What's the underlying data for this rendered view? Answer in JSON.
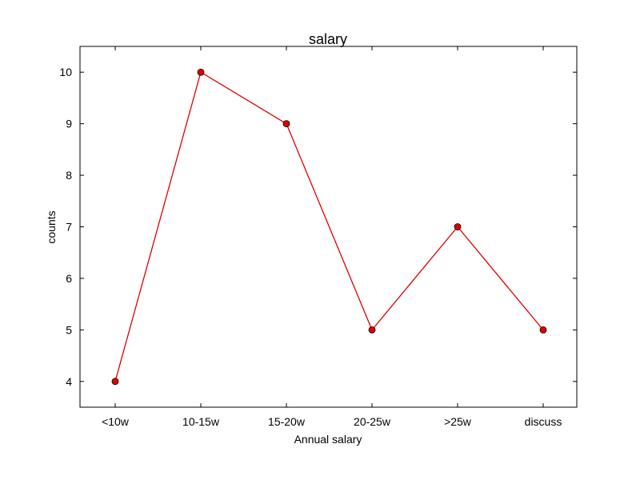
{
  "chart_data": {
    "type": "line",
    "title": "salary",
    "xlabel": "Annual salary",
    "ylabel": "counts",
    "categories": [
      "<10w",
      "10-15w",
      "15-20w",
      "20-25w",
      ">25w",
      "discuss"
    ],
    "series": [
      {
        "values": [
          4,
          10,
          9,
          5,
          7,
          5
        ],
        "color": "#e00000"
      }
    ],
    "ylim": [
      3.5,
      10.5
    ],
    "yticks": [
      "4",
      "5",
      "6",
      "7",
      "8",
      "9",
      "10"
    ],
    "grid": false,
    "marker_color": "#e00000"
  }
}
